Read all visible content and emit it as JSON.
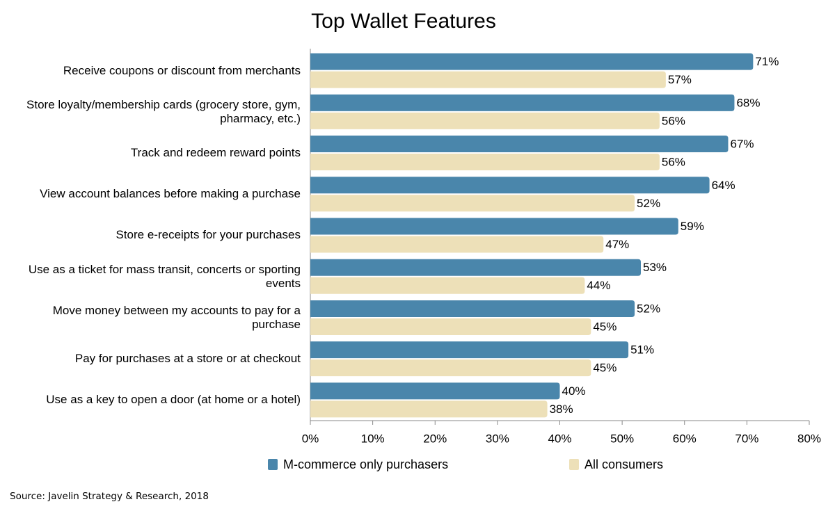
{
  "chart_data": {
    "type": "hbar",
    "title": "Top Wallet Features",
    "source": "Source: Javelin Strategy & Research, 2018",
    "categories": [
      "Receive coupons or discount from merchants",
      "Store loyalty/membership cards (grocery store, gym, pharmacy, etc.)",
      "Track and redeem reward points",
      "View account balances before making a purchase",
      "Store e-receipts for your purchases",
      "Use as a ticket for mass transit, concerts or sporting events",
      "Move money between my accounts to pay for a purchase",
      "Pay for purchases at a store or at checkout",
      "Use as a key to open a door (at home or a hotel)"
    ],
    "series": [
      {
        "name": "M-commerce only purchasers",
        "color": "#4a86ab",
        "values": [
          71,
          68,
          67,
          64,
          59,
          53,
          52,
          51,
          40
        ],
        "value_labels": [
          "71%",
          "68%",
          "67%",
          "64%",
          "59%",
          "53%",
          "52%",
          "51%",
          "40%"
        ]
      },
      {
        "name": "All consumers",
        "color": "#ede0b8",
        "values": [
          57,
          56,
          56,
          52,
          47,
          44,
          45,
          45,
          38
        ],
        "value_labels": [
          "57%",
          "56%",
          "56%",
          "52%",
          "47%",
          "44%",
          "45%",
          "45%",
          "38%"
        ]
      }
    ],
    "xlim": [
      0,
      80
    ],
    "xticks": [
      {
        "value": 0,
        "label": "0%"
      },
      {
        "value": 10,
        "label": "10%"
      },
      {
        "value": 20,
        "label": "20%"
      },
      {
        "value": 30,
        "label": "30%"
      },
      {
        "value": 40,
        "label": "40%"
      },
      {
        "value": 50,
        "label": "50%"
      },
      {
        "value": 60,
        "label": "60%"
      },
      {
        "value": 70,
        "label": "70%"
      },
      {
        "value": 80,
        "label": "80%"
      }
    ],
    "grid": false,
    "legend": "bottom"
  }
}
